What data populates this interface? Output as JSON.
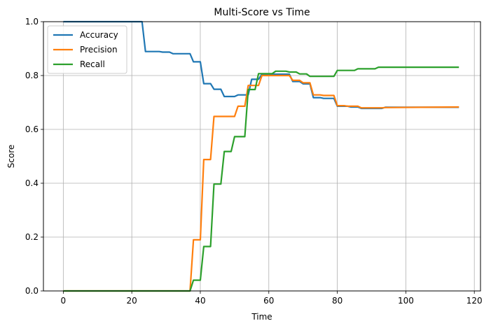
{
  "chart_data": {
    "type": "line",
    "title": "Multi-Score vs Time",
    "xlabel": "Time",
    "ylabel": "Score",
    "xlim": [
      -5.8,
      121.8
    ],
    "ylim": [
      0,
      1.0
    ],
    "xticks": [
      0,
      20,
      40,
      60,
      80,
      100,
      120
    ],
    "yticks": [
      0.0,
      0.2,
      0.4,
      0.6,
      0.8,
      1.0
    ],
    "grid": true,
    "legend_position": "top-left",
    "series": [
      {
        "name": "Accuracy",
        "color": "#1f77b4",
        "points": [
          [
            0,
            1.0
          ],
          [
            23,
            1.0
          ],
          [
            24,
            0.889
          ],
          [
            28,
            0.889
          ],
          [
            29,
            0.887
          ],
          [
            31,
            0.887
          ],
          [
            32,
            0.881
          ],
          [
            37,
            0.881
          ],
          [
            38,
            0.851
          ],
          [
            40,
            0.851
          ],
          [
            41,
            0.77
          ],
          [
            43,
            0.77
          ],
          [
            44,
            0.749
          ],
          [
            46,
            0.749
          ],
          [
            47,
            0.722
          ],
          [
            50,
            0.722
          ],
          [
            51,
            0.728
          ],
          [
            54,
            0.728
          ],
          [
            55,
            0.786
          ],
          [
            57,
            0.786
          ],
          [
            58,
            0.805
          ],
          [
            66,
            0.805
          ],
          [
            67,
            0.778
          ],
          [
            69,
            0.778
          ],
          [
            70,
            0.769
          ],
          [
            72,
            0.769
          ],
          [
            73,
            0.718
          ],
          [
            75,
            0.718
          ],
          [
            76,
            0.715
          ],
          [
            79,
            0.715
          ],
          [
            80,
            0.686
          ],
          [
            83,
            0.686
          ],
          [
            84,
            0.683
          ],
          [
            86,
            0.683
          ],
          [
            87,
            0.678
          ],
          [
            93,
            0.678
          ],
          [
            94,
            0.682
          ],
          [
            115.5,
            0.682
          ]
        ]
      },
      {
        "name": "Precision",
        "color": "#ff7f0e",
        "points": [
          [
            0,
            0.0
          ],
          [
            37,
            0.0
          ],
          [
            38,
            0.19
          ],
          [
            40,
            0.19
          ],
          [
            41,
            0.488
          ],
          [
            43,
            0.488
          ],
          [
            44,
            0.648
          ],
          [
            50,
            0.648
          ],
          [
            51,
            0.686
          ],
          [
            53,
            0.686
          ],
          [
            54,
            0.763
          ],
          [
            57,
            0.763
          ],
          [
            58,
            0.8
          ],
          [
            66,
            0.8
          ],
          [
            67,
            0.782
          ],
          [
            69,
            0.782
          ],
          [
            70,
            0.773
          ],
          [
            72,
            0.773
          ],
          [
            73,
            0.728
          ],
          [
            75,
            0.728
          ],
          [
            76,
            0.726
          ],
          [
            79,
            0.726
          ],
          [
            80,
            0.688
          ],
          [
            82,
            0.688
          ],
          [
            83,
            0.686
          ],
          [
            86,
            0.686
          ],
          [
            87,
            0.68
          ],
          [
            93,
            0.68
          ],
          [
            94,
            0.681
          ],
          [
            115.5,
            0.683
          ]
        ]
      },
      {
        "name": "Recall",
        "color": "#2ca02c",
        "points": [
          [
            0,
            0.0
          ],
          [
            37,
            0.0
          ],
          [
            38,
            0.04
          ],
          [
            40,
            0.04
          ],
          [
            41,
            0.165
          ],
          [
            43,
            0.165
          ],
          [
            44,
            0.397
          ],
          [
            46,
            0.397
          ],
          [
            47,
            0.518
          ],
          [
            49,
            0.518
          ],
          [
            50,
            0.573
          ],
          [
            53,
            0.573
          ],
          [
            54,
            0.748
          ],
          [
            56,
            0.748
          ],
          [
            57,
            0.807
          ],
          [
            61,
            0.807
          ],
          [
            62,
            0.816
          ],
          [
            65,
            0.816
          ],
          [
            66,
            0.813
          ],
          [
            68,
            0.813
          ],
          [
            69,
            0.806
          ],
          [
            71,
            0.806
          ],
          [
            72,
            0.797
          ],
          [
            79,
            0.797
          ],
          [
            80,
            0.819
          ],
          [
            85,
            0.819
          ],
          [
            86,
            0.825
          ],
          [
            91,
            0.825
          ],
          [
            92,
            0.831
          ],
          [
            115.5,
            0.831
          ]
        ]
      }
    ]
  }
}
